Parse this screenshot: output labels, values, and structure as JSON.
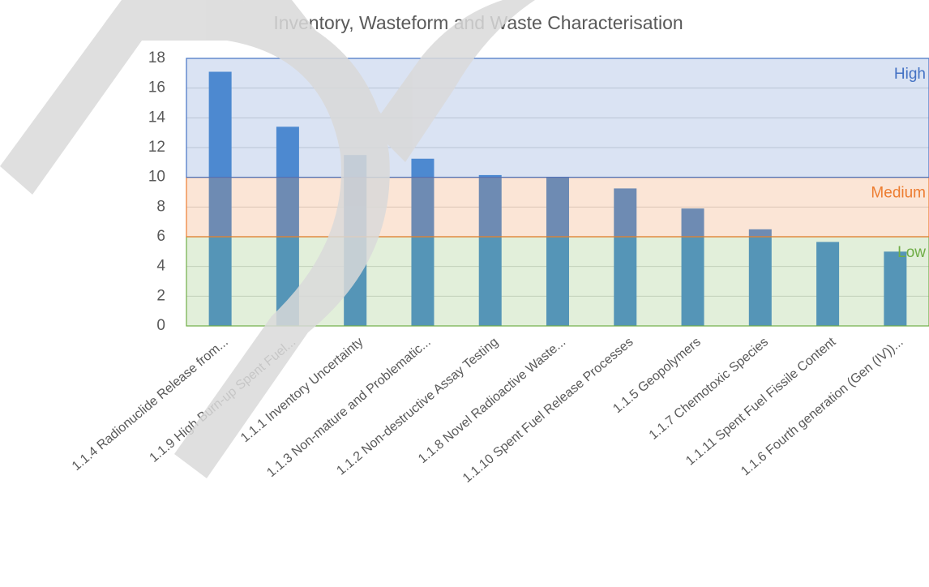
{
  "chart_data": {
    "type": "bar",
    "title": "Inventory, Wasteform and Waste Characterisation",
    "categories": [
      "1.1.4 Radionuclide Release from...",
      "1.1.9 High Burn-up Spent Fuel...",
      "1.1.1 Inventory Uncertainty",
      "1.1.3 Non-mature and Problematic...",
      "1.1.2 Non-destructive Assay Testing",
      "1.1.8 Novel Radioactive Waste...",
      "1.1.10 Spent Fuel Release Processes",
      "1.1.5 Geopolymers",
      "1.1.7 Chemotoxic Species",
      "1.1.11 Spent Fuel Fissile Content",
      "1.1.6 Fourth generation (Gen (IV))..."
    ],
    "values": [
      17.1,
      13.4,
      11.5,
      11.25,
      10.15,
      10,
      9.25,
      7.9,
      6.5,
      5.65,
      5.0
    ],
    "color": "#4f8fd4",
    "ylim": [
      0,
      18
    ],
    "yticks": [
      0,
      2,
      4,
      6,
      8,
      10,
      12,
      14,
      16,
      18
    ],
    "grid": true,
    "bands": [
      {
        "name": "Low",
        "from": 0,
        "to": 6,
        "color": "#70ad47"
      },
      {
        "name": "Medium",
        "from": 6,
        "to": 10,
        "color": "#ed7d31"
      },
      {
        "name": "High",
        "from": 10,
        "to": 18,
        "color": "#4472c4"
      }
    ]
  }
}
